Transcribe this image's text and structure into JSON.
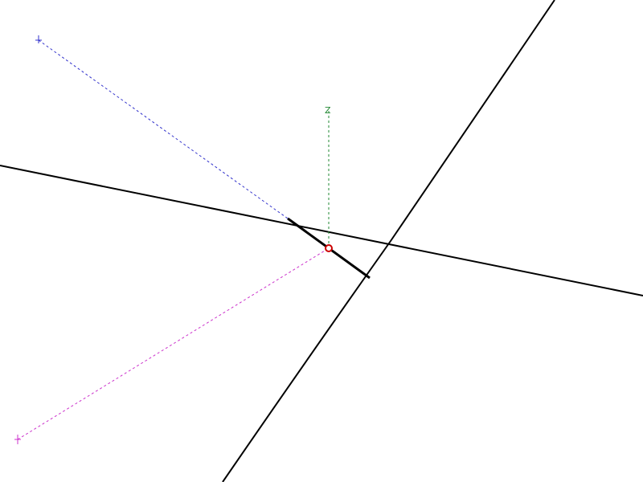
{
  "scene": {
    "background_color": "#ffffff",
    "line_color": "#000000"
  },
  "axes": {
    "x": {
      "label": "",
      "color": "#3333cc"
    },
    "y": {
      "label": "",
      "color": "#cc33cc"
    },
    "z": {
      "label": "Z",
      "color": "#228833"
    }
  },
  "origin_marker": {
    "icon": "origin-circle-icon",
    "color": "#cc0000"
  }
}
